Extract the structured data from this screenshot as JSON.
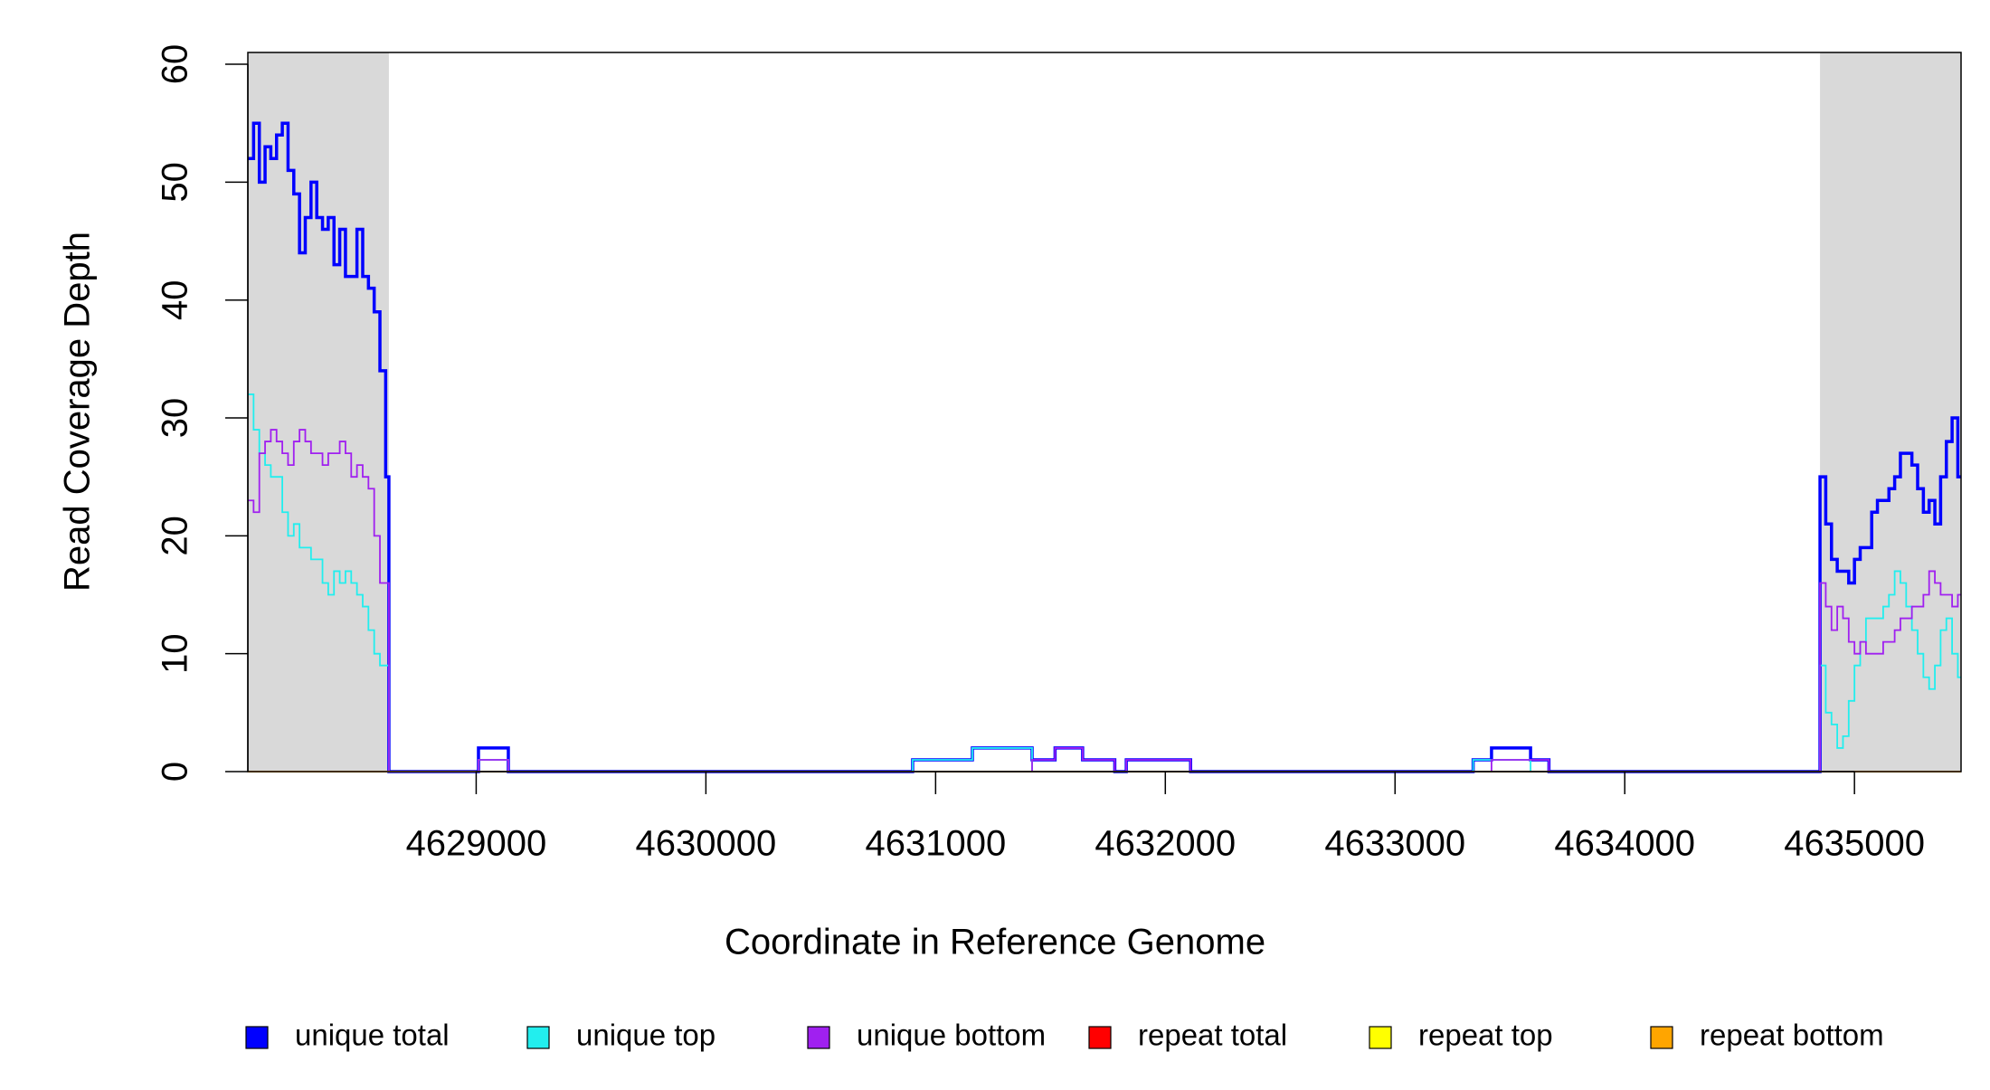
{
  "chart_data": {
    "type": "step",
    "xlabel": "Coordinate in Reference Genome",
    "ylabel": "Read Coverage Depth",
    "xlim": [
      4628006,
      4635464
    ],
    "ylim": [
      0,
      61
    ],
    "xticks": [
      4629000,
      4630000,
      4631000,
      4632000,
      4633000,
      4634000,
      4635000
    ],
    "yticks": [
      0,
      10,
      20,
      30,
      40,
      50,
      60
    ],
    "shaded_regions": [
      [
        4628006,
        4628620
      ],
      [
        4634850,
        4635464
      ]
    ],
    "shade_color": "#d9d9d9",
    "legend": "bottom",
    "x": [
      4628006,
      4628031,
      4628056,
      4628081,
      4628106,
      4628131,
      4628156,
      4628181,
      4628206,
      4628231,
      4628256,
      4628281,
      4628306,
      4628331,
      4628356,
      4628381,
      4628406,
      4628431,
      4628456,
      4628481,
      4628506,
      4628531,
      4628556,
      4628581,
      4628606,
      4628620,
      4629010,
      4629140,
      4630900,
      4631160,
      4631420,
      4631520,
      4631640,
      4631780,
      4631830,
      4632110,
      4633340,
      4633420,
      4633590,
      4633670,
      4634850,
      4634875,
      4634900,
      4634925,
      4634950,
      4634975,
      4635000,
      4635025,
      4635050,
      4635075,
      4635100,
      4635125,
      4635150,
      4635175,
      4635200,
      4635225,
      4635250,
      4635275,
      4635300,
      4635325,
      4635350,
      4635375,
      4635400,
      4635425,
      4635450,
      4635464
    ],
    "series": [
      {
        "name": "unique total",
        "color": "#0000ff",
        "width": 3.5,
        "values": [
          52,
          55,
          50,
          53,
          52,
          54,
          55,
          51,
          49,
          44,
          47,
          50,
          47,
          46,
          47,
          43,
          46,
          42,
          42,
          46,
          42,
          41,
          39,
          34,
          25,
          0,
          2,
          0,
          1,
          2,
          1,
          2,
          1,
          0,
          1,
          0,
          1,
          2,
          1,
          0,
          25,
          21,
          18,
          17,
          17,
          16,
          18,
          19,
          19,
          22,
          23,
          23,
          24,
          25,
          27,
          27,
          26,
          24,
          22,
          23,
          21,
          25,
          28,
          30,
          25,
          25
        ]
      },
      {
        "name": "unique top",
        "color": "#22eeee",
        "width": 1.8,
        "values": [
          32,
          29,
          27,
          26,
          25,
          25,
          22,
          20,
          21,
          19,
          19,
          18,
          18,
          16,
          15,
          17,
          16,
          17,
          16,
          15,
          14,
          12,
          10,
          9,
          9,
          0,
          1,
          0,
          1,
          2,
          0,
          0,
          0,
          0,
          0,
          0,
          1,
          1,
          0,
          0,
          9,
          5,
          4,
          2,
          3,
          6,
          9,
          11,
          13,
          13,
          13,
          14,
          15,
          17,
          16,
          14,
          12,
          10,
          8,
          7,
          9,
          12,
          13,
          10,
          8,
          8
        ]
      },
      {
        "name": "unique bottom",
        "color": "#a020f0",
        "width": 1.8,
        "values": [
          23,
          22,
          27,
          28,
          29,
          28,
          27,
          26,
          28,
          29,
          28,
          27,
          27,
          26,
          27,
          27,
          28,
          27,
          25,
          26,
          25,
          24,
          20,
          16,
          16,
          0,
          1,
          0,
          0,
          0,
          1,
          2,
          1,
          0,
          1,
          0,
          0,
          1,
          1,
          0,
          16,
          14,
          12,
          14,
          13,
          11,
          10,
          11,
          10,
          10,
          10,
          11,
          11,
          12,
          13,
          13,
          14,
          14,
          15,
          17,
          16,
          15,
          15,
          14,
          15,
          15
        ]
      },
      {
        "name": "repeat total",
        "color": "#ff0000",
        "width": 1.8,
        "values": [
          0,
          0,
          0,
          0,
          0,
          0,
          0,
          0,
          0,
          0,
          0,
          0,
          0,
          0,
          0,
          0,
          0,
          0,
          0,
          0,
          0,
          0,
          0,
          0,
          0,
          0,
          0,
          0,
          0,
          0,
          0,
          0,
          0,
          0,
          0,
          0,
          0,
          0,
          0,
          0,
          0,
          0,
          0,
          0,
          0,
          0,
          0,
          0,
          0,
          0,
          0,
          0,
          0,
          0,
          0,
          0,
          0,
          0,
          0,
          0,
          0,
          0,
          0,
          0,
          0,
          0
        ]
      },
      {
        "name": "repeat top",
        "color": "#ffff00",
        "width": 1.8,
        "values": [
          0,
          0,
          0,
          0,
          0,
          0,
          0,
          0,
          0,
          0,
          0,
          0,
          0,
          0,
          0,
          0,
          0,
          0,
          0,
          0,
          0,
          0,
          0,
          0,
          0,
          0,
          0,
          0,
          0,
          0,
          0,
          0,
          0,
          0,
          0,
          0,
          0,
          0,
          0,
          0,
          0,
          0,
          0,
          0,
          0,
          0,
          0,
          0,
          0,
          0,
          0,
          0,
          0,
          0,
          0,
          0,
          0,
          0,
          0,
          0,
          0,
          0,
          0,
          0,
          0,
          0
        ]
      },
      {
        "name": "repeat bottom",
        "color": "#ffa500",
        "width": 1.8,
        "values": [
          0,
          0,
          0,
          0,
          0,
          0,
          0,
          0,
          0,
          0,
          0,
          0,
          0,
          0,
          0,
          0,
          0,
          0,
          0,
          0,
          0,
          0,
          0,
          0,
          0,
          0,
          0,
          0,
          0,
          0,
          0,
          0,
          0,
          0,
          0,
          0,
          0,
          0,
          0,
          0,
          0,
          0,
          0,
          0,
          0,
          0,
          0,
          0,
          0,
          0,
          0,
          0,
          0,
          0,
          0,
          0,
          0,
          0,
          0,
          0,
          0,
          0,
          0,
          0,
          0,
          0
        ]
      }
    ]
  }
}
